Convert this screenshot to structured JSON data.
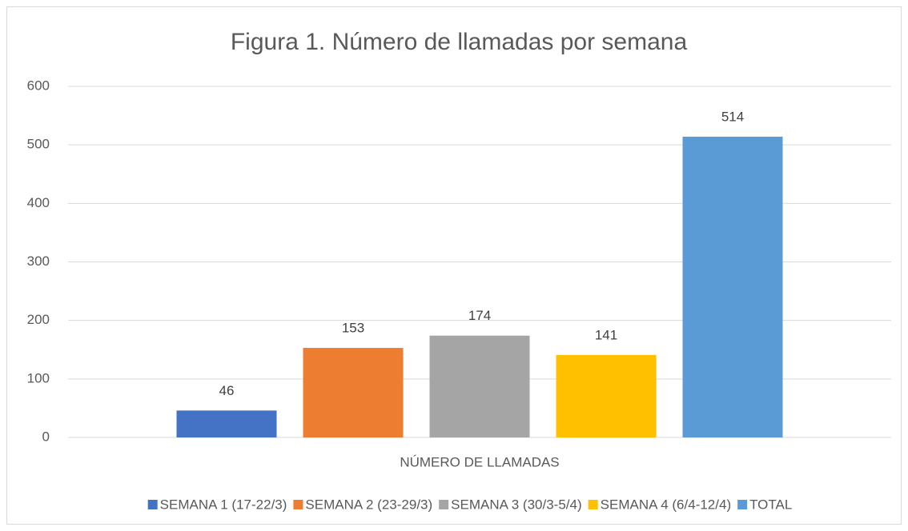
{
  "chart_data": {
    "type": "bar",
    "title": "Figura 1. Número de llamadas por semana",
    "categories": [
      "NÚMERO DE LLAMADAS"
    ],
    "series": [
      {
        "name": "SEMANA 1 (17-22/3)",
        "color": "#4472c4",
        "values": [
          46
        ]
      },
      {
        "name": "SEMANA 2 (23-29/3)",
        "color": "#ed7d31",
        "values": [
          153
        ]
      },
      {
        "name": "SEMANA 3 (30/3-5/4)",
        "color": "#a5a5a5",
        "values": [
          174
        ]
      },
      {
        "name": "SEMANA 4 (6/4-12/4)",
        "color": "#ffc000",
        "values": [
          141
        ]
      },
      {
        "name": "TOTAL",
        "color": "#5b9bd5",
        "values": [
          514
        ]
      }
    ],
    "ylim": [
      0,
      600
    ],
    "yticks": [
      0,
      100,
      200,
      300,
      400,
      500,
      600
    ],
    "grid": true,
    "legend": "bottom"
  }
}
